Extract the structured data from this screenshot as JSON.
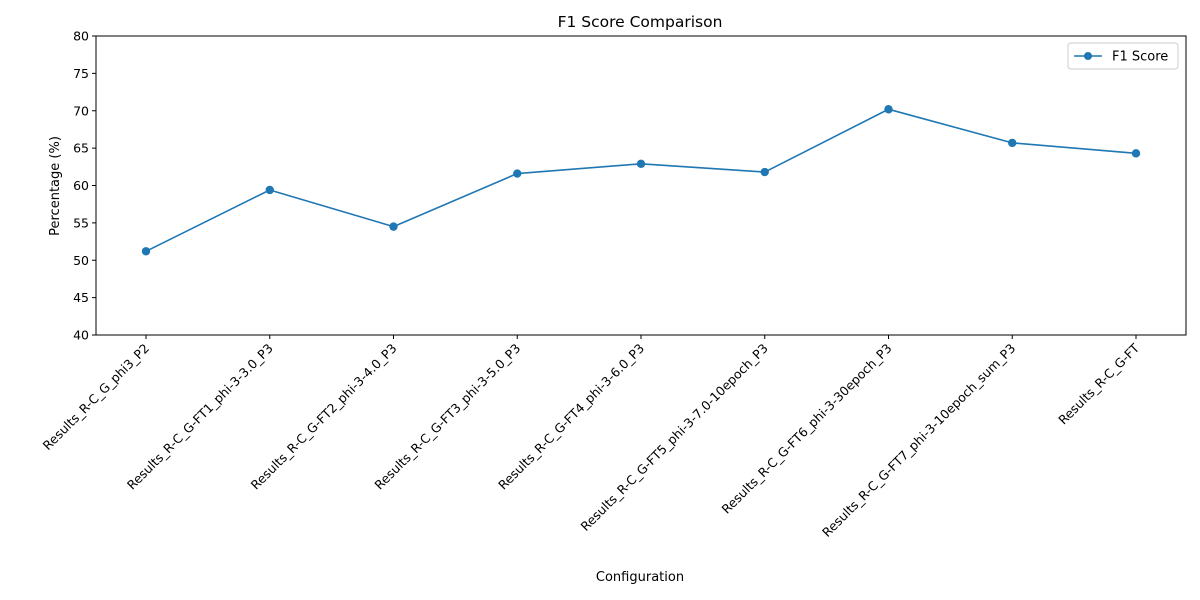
{
  "chart_data": {
    "type": "line",
    "title": "F1 Score Comparison",
    "xlabel": "Configuration",
    "ylabel": "Percentage (%)",
    "ylim": [
      40,
      80
    ],
    "yticks": [
      40,
      45,
      50,
      55,
      60,
      65,
      70,
      75,
      80
    ],
    "categories": [
      "Results_R-C_G_phi3_P2",
      "Results_R-C_G-FT1_phi-3-3.0_P3",
      "Results_R-C_G-FT2_phi-3-4.0_P3",
      "Results_R-C_G-FT3_phi-3-5.0_P3",
      "Results_R-C_G-FT4_phi-3-6.0_P3",
      "Results_R-C_G-FT5_phi-3-7.0-10epoch_P3",
      "Results_R-C_G-FT6_phi-3-30epoch_P3",
      "Results_R-C_G-FT7_phi-3-10epoch_sum_P3",
      "Results_R-C_G-FT"
    ],
    "series": [
      {
        "name": "F1 Score",
        "color": "#1f77b4",
        "values": [
          51.2,
          59.4,
          54.5,
          61.6,
          62.9,
          61.8,
          70.2,
          65.7,
          64.3
        ]
      }
    ],
    "grid": false,
    "legend_position": "top-right"
  }
}
